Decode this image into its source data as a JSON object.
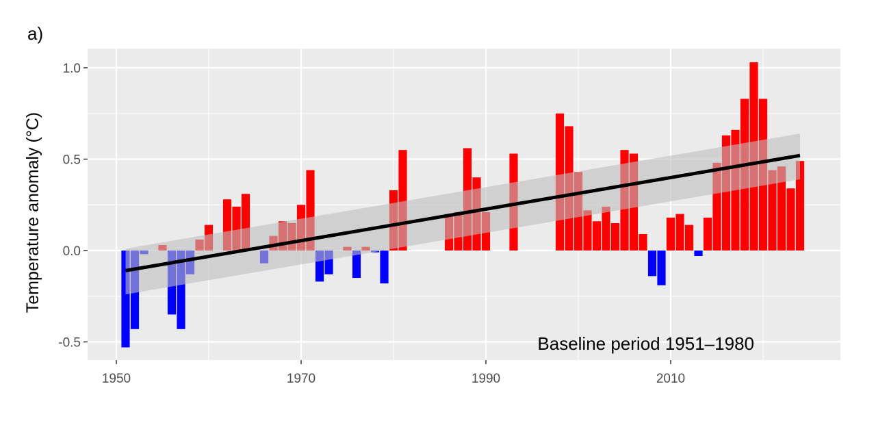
{
  "panel_label": "a)",
  "chart_data": {
    "type": "bar",
    "title": "",
    "xlabel": "",
    "ylabel": "Temperature anomaly (°C)",
    "annotation": "Baseline period 1951–1980",
    "xlim": [
      1947,
      2028
    ],
    "ylim": [
      -0.6,
      1.1
    ],
    "x_ticks": [
      1950,
      1970,
      1990,
      2010
    ],
    "y_ticks": [
      -0.5,
      0.0,
      0.5,
      1.0
    ],
    "y_tick_labels": [
      "-0.5",
      "0.0",
      "0.5",
      "1.0"
    ],
    "grid": true,
    "colors": {
      "positive": "#ff0000",
      "negative": "#0000ff",
      "trend": "#000000",
      "ci_band": "#bebebe",
      "panel_bg": "#ebebeb",
      "grid": "#ffffff"
    },
    "bars": [
      {
        "year": 1951,
        "value": -0.53
      },
      {
        "year": 1952,
        "value": -0.43
      },
      {
        "year": 1953,
        "value": -0.02
      },
      {
        "year": 1954,
        "value": 0.0
      },
      {
        "year": 1955,
        "value": 0.03
      },
      {
        "year": 1956,
        "value": -0.35
      },
      {
        "year": 1957,
        "value": -0.43
      },
      {
        "year": 1958,
        "value": -0.13
      },
      {
        "year": 1959,
        "value": 0.06
      },
      {
        "year": 1960,
        "value": 0.14
      },
      {
        "year": 1961,
        "value": 0.0
      },
      {
        "year": 1962,
        "value": 0.28
      },
      {
        "year": 1963,
        "value": 0.24
      },
      {
        "year": 1964,
        "value": 0.31
      },
      {
        "year": 1965,
        "value": 0.0
      },
      {
        "year": 1966,
        "value": -0.07
      },
      {
        "year": 1967,
        "value": 0.08
      },
      {
        "year": 1968,
        "value": 0.16
      },
      {
        "year": 1969,
        "value": 0.15
      },
      {
        "year": 1970,
        "value": 0.25
      },
      {
        "year": 1971,
        "value": 0.44
      },
      {
        "year": 1972,
        "value": -0.17
      },
      {
        "year": 1973,
        "value": -0.13
      },
      {
        "year": 1974,
        "value": 0.0
      },
      {
        "year": 1975,
        "value": 0.02
      },
      {
        "year": 1976,
        "value": -0.15
      },
      {
        "year": 1977,
        "value": 0.02
      },
      {
        "year": 1978,
        "value": -0.01
      },
      {
        "year": 1979,
        "value": -0.18
      },
      {
        "year": 1980,
        "value": 0.33
      },
      {
        "year": 1981,
        "value": 0.55
      },
      {
        "year": 1982,
        "value": 0.0
      },
      {
        "year": 1983,
        "value": 0.0
      },
      {
        "year": 1984,
        "value": 0.0
      },
      {
        "year": 1985,
        "value": 0.0
      },
      {
        "year": 1986,
        "value": 0.2
      },
      {
        "year": 1987,
        "value": 0.21
      },
      {
        "year": 1988,
        "value": 0.56
      },
      {
        "year": 1989,
        "value": 0.4
      },
      {
        "year": 1990,
        "value": 0.21
      },
      {
        "year": 1991,
        "value": 0.0
      },
      {
        "year": 1992,
        "value": 0.0
      },
      {
        "year": 1993,
        "value": 0.53
      },
      {
        "year": 1994,
        "value": 0.0
      },
      {
        "year": 1995,
        "value": 0.0
      },
      {
        "year": 1996,
        "value": 0.0
      },
      {
        "year": 1997,
        "value": 0.0
      },
      {
        "year": 1998,
        "value": 0.75
      },
      {
        "year": 1999,
        "value": 0.68
      },
      {
        "year": 2000,
        "value": 0.43
      },
      {
        "year": 2001,
        "value": 0.22
      },
      {
        "year": 2002,
        "value": 0.16
      },
      {
        "year": 2003,
        "value": 0.24
      },
      {
        "year": 2004,
        "value": 0.15
      },
      {
        "year": 2005,
        "value": 0.55
      },
      {
        "year": 2006,
        "value": 0.53
      },
      {
        "year": 2007,
        "value": 0.09
      },
      {
        "year": 2008,
        "value": -0.14
      },
      {
        "year": 2009,
        "value": -0.19
      },
      {
        "year": 2010,
        "value": 0.18
      },
      {
        "year": 2011,
        "value": 0.2
      },
      {
        "year": 2012,
        "value": 0.14
      },
      {
        "year": 2013,
        "value": -0.03
      },
      {
        "year": 2014,
        "value": 0.18
      },
      {
        "year": 2015,
        "value": 0.48
      },
      {
        "year": 2016,
        "value": 0.63
      },
      {
        "year": 2017,
        "value": 0.66
      },
      {
        "year": 2018,
        "value": 0.83
      },
      {
        "year": 2019,
        "value": 1.03
      },
      {
        "year": 2020,
        "value": 0.83
      },
      {
        "year": 2021,
        "value": 0.44
      },
      {
        "year": 2022,
        "value": 0.46
      },
      {
        "year": 2023,
        "value": 0.34
      },
      {
        "year": 2024,
        "value": 0.49
      }
    ],
    "trend": {
      "start": {
        "year": 1951,
        "value": -0.11
      },
      "end": {
        "year": 2024,
        "value": 0.52
      },
      "ci_start": [
        -0.24,
        0.01
      ],
      "ci_end": [
        0.39,
        0.64
      ]
    }
  }
}
